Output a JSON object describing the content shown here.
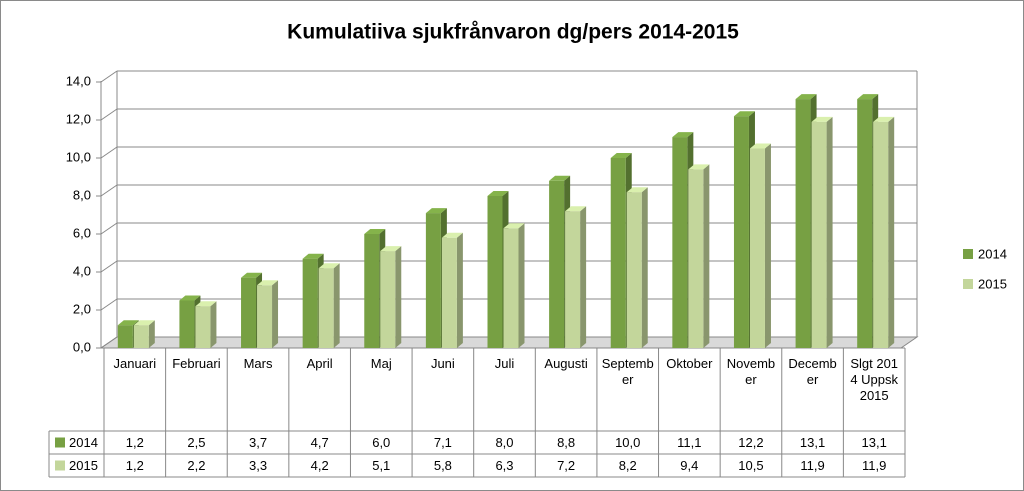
{
  "chart_data": {
    "type": "bar3d",
    "title": "Kumulatiiva sjukfrånvaron dg/pers 2014-2015",
    "categories": [
      "Januari",
      "Februari",
      "Mars",
      "April",
      "Maj",
      "Juni",
      "Juli",
      "Augusti",
      "September",
      "Oktober",
      "November",
      "December",
      "Slgt 2014 Uppsk 2015"
    ],
    "series": [
      {
        "name": "2014",
        "color": "#77a043",
        "values": [
          1.2,
          2.5,
          3.7,
          4.7,
          6.0,
          7.1,
          8.0,
          8.8,
          10.0,
          11.1,
          12.2,
          13.1,
          13.1
        ],
        "value_labels": [
          "1,2",
          "2,5",
          "3,7",
          "4,7",
          "6,0",
          "7,1",
          "8,0",
          "8,8",
          "10,0",
          "11,1",
          "12,2",
          "13,1",
          "13,1"
        ]
      },
      {
        "name": "2015",
        "color": "#c3d69b",
        "values": [
          1.2,
          2.2,
          3.3,
          4.2,
          5.1,
          5.8,
          6.3,
          7.2,
          8.2,
          9.4,
          10.5,
          11.9,
          11.9
        ],
        "value_labels": [
          "1,2",
          "2,2",
          "3,3",
          "4,2",
          "5,1",
          "5,8",
          "6,3",
          "7,2",
          "8,2",
          "9,4",
          "10,5",
          "11,9",
          "11,9"
        ]
      }
    ],
    "ylim": [
      0,
      14
    ],
    "yticks": [
      {
        "value": 0,
        "label": "0,0"
      },
      {
        "value": 2,
        "label": "2,0"
      },
      {
        "value": 4,
        "label": "4,0"
      },
      {
        "value": 6,
        "label": "6,0"
      },
      {
        "value": 8,
        "label": "8,0"
      },
      {
        "value": 10,
        "label": "10,0"
      },
      {
        "value": 12,
        "label": "12,0"
      },
      {
        "value": 14,
        "label": "14,0"
      }
    ],
    "grid": true,
    "legend": "right"
  }
}
